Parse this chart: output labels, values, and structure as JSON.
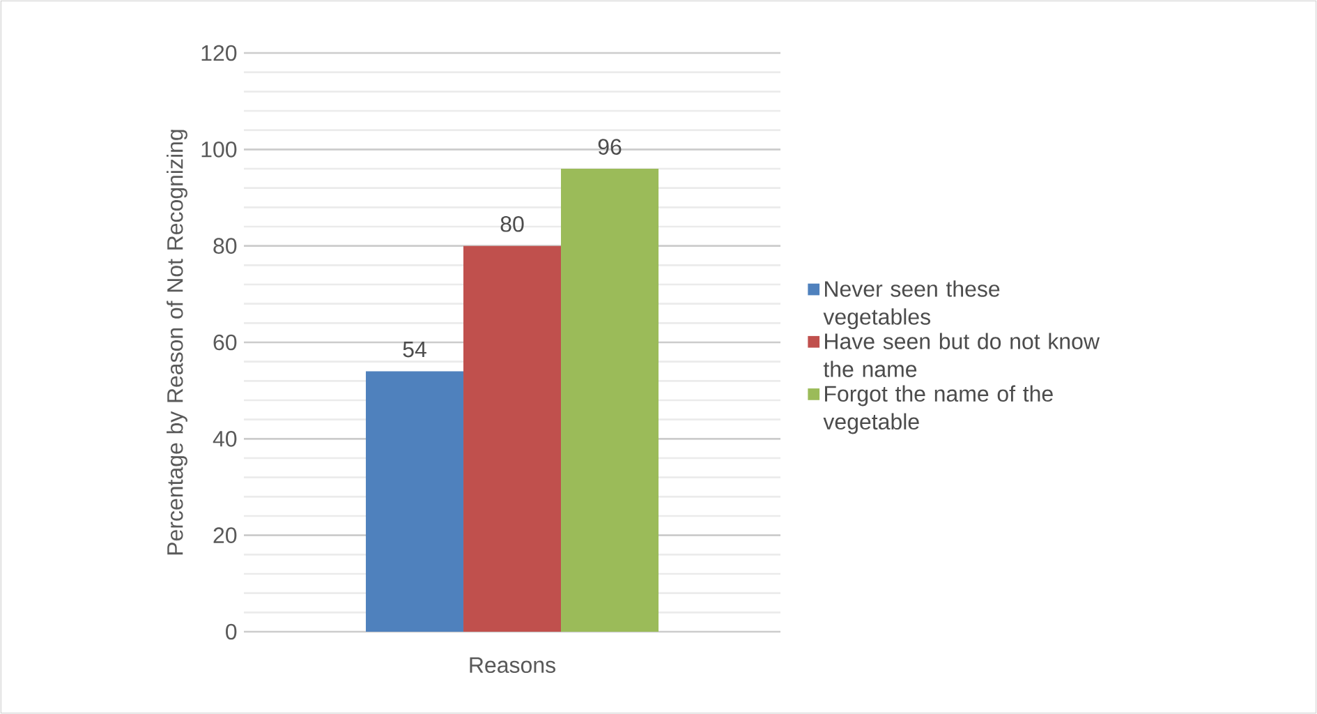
{
  "chart_data": {
    "type": "bar",
    "ylabel": "Percentage by Reason of Not Recognizing",
    "categories": [
      "Reasons"
    ],
    "series": [
      {
        "name": "Never seen these vegetables",
        "color": "#4f81bd",
        "values": [
          54
        ]
      },
      {
        "name": "Have seen but do not know the name",
        "color": "#c0504d",
        "values": [
          80
        ]
      },
      {
        "name": "Forgot the name of the vegetable",
        "color": "#9bbb59",
        "values": [
          96
        ]
      }
    ],
    "ylim": [
      0,
      120
    ],
    "yticks": [
      0,
      20,
      40,
      60,
      80,
      100,
      120
    ],
    "grid": "y",
    "legend": "right",
    "data_labels": true
  }
}
